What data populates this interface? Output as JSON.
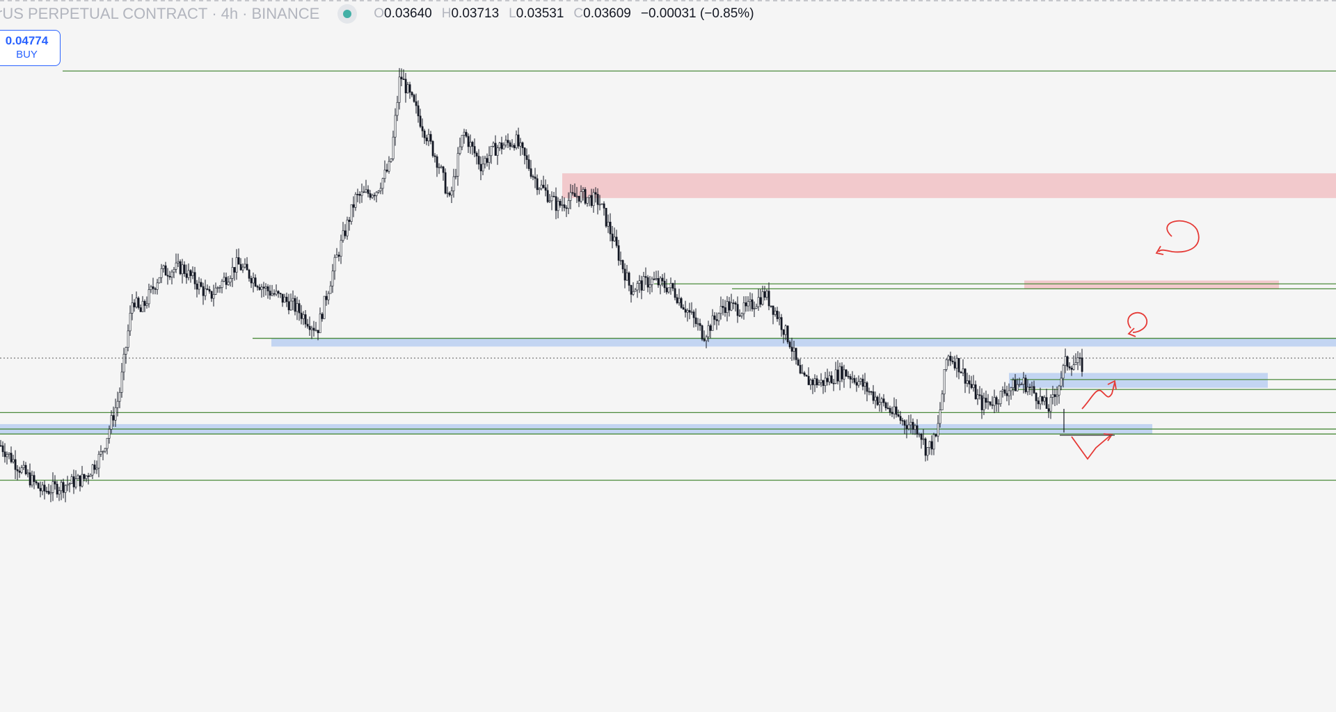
{
  "header": {
    "symbol": "rUS PERPETUAL CONTRACT",
    "sep1": "·",
    "interval": "4h",
    "sep2": "·",
    "exchange": "BINANCE",
    "open_label": "O",
    "open": "0.03640",
    "high_label": "H",
    "high": "0.03713",
    "low_label": "L",
    "low": "0.03531",
    "close_label": "C",
    "close": "0.03609",
    "change": "−0.00031 (−0.85%)"
  },
  "buy_button": {
    "price": "0.04774",
    "label": "BUY"
  },
  "colors": {
    "background": "#f5f5f5",
    "candle": "#131722",
    "level_line": "#4a8a3a",
    "supply_zone": "#f2c9cc",
    "demand_zone": "#c3d5f2",
    "drawing": "#e53935"
  },
  "chart_data": {
    "type": "candlestick",
    "timeframe": "4h",
    "y_scale": "price",
    "last_close": 0.03609,
    "path_keypoints": [
      [
        0,
        0.033
      ],
      [
        30,
        0.0315
      ],
      [
        60,
        0.0302
      ],
      [
        90,
        0.0306
      ],
      [
        120,
        0.031
      ],
      [
        145,
        0.0325
      ],
      [
        170,
        0.036
      ],
      [
        190,
        0.042
      ],
      [
        200,
        0.041
      ],
      [
        230,
        0.0435
      ],
      [
        260,
        0.0438
      ],
      [
        300,
        0.042
      ],
      [
        340,
        0.044
      ],
      [
        380,
        0.0425
      ],
      [
        420,
        0.0415
      ],
      [
        455,
        0.04
      ],
      [
        480,
        0.044
      ],
      [
        510,
        0.048
      ],
      [
        540,
        0.0485
      ],
      [
        560,
        0.05
      ],
      [
        574,
        0.0555
      ],
      [
        600,
        0.053
      ],
      [
        630,
        0.05
      ],
      [
        645,
        0.0478
      ],
      [
        665,
        0.052
      ],
      [
        690,
        0.05
      ],
      [
        710,
        0.051
      ],
      [
        740,
        0.0515
      ],
      [
        770,
        0.049
      ],
      [
        800,
        0.0475
      ],
      [
        830,
        0.0482
      ],
      [
        860,
        0.0478
      ],
      [
        880,
        0.0455
      ],
      [
        905,
        0.0425
      ],
      [
        935,
        0.043
      ],
      [
        965,
        0.0425
      ],
      [
        990,
        0.041
      ],
      [
        1010,
        0.0397
      ],
      [
        1040,
        0.0415
      ],
      [
        1070,
        0.0412
      ],
      [
        1098,
        0.0422
      ],
      [
        1115,
        0.041
      ],
      [
        1135,
        0.0392
      ],
      [
        1150,
        0.037
      ],
      [
        1180,
        0.0368
      ],
      [
        1210,
        0.0375
      ],
      [
        1230,
        0.037
      ],
      [
        1260,
        0.0358
      ],
      [
        1295,
        0.0345
      ],
      [
        1320,
        0.034
      ],
      [
        1330,
        0.0327
      ],
      [
        1345,
        0.0335
      ],
      [
        1360,
        0.0385
      ],
      [
        1375,
        0.038
      ],
      [
        1395,
        0.0365
      ],
      [
        1410,
        0.0355
      ],
      [
        1430,
        0.0358
      ],
      [
        1450,
        0.0365
      ],
      [
        1470,
        0.0368
      ],
      [
        1490,
        0.036
      ],
      [
        1505,
        0.0352
      ],
      [
        1515,
        0.036
      ],
      [
        1530,
        0.038
      ],
      [
        1545,
        0.038
      ],
      [
        1555,
        0.0378
      ]
    ],
    "horizontal_levels": [
      0.0557,
      0.0428,
      0.0425,
      0.0395,
      0.037,
      0.0364,
      0.035,
      0.034,
      0.0337,
      0.0309
    ],
    "reference_line": 0.0383,
    "supply_zones": [
      [
        0.048,
        0.0495
      ],
      [
        0.0425,
        0.043
      ]
    ],
    "demand_zones": [
      [
        0.039,
        0.0395
      ],
      [
        0.0365,
        0.0374
      ],
      [
        0.0337,
        0.0343
      ]
    ],
    "grid": false,
    "legend": "top-left"
  }
}
